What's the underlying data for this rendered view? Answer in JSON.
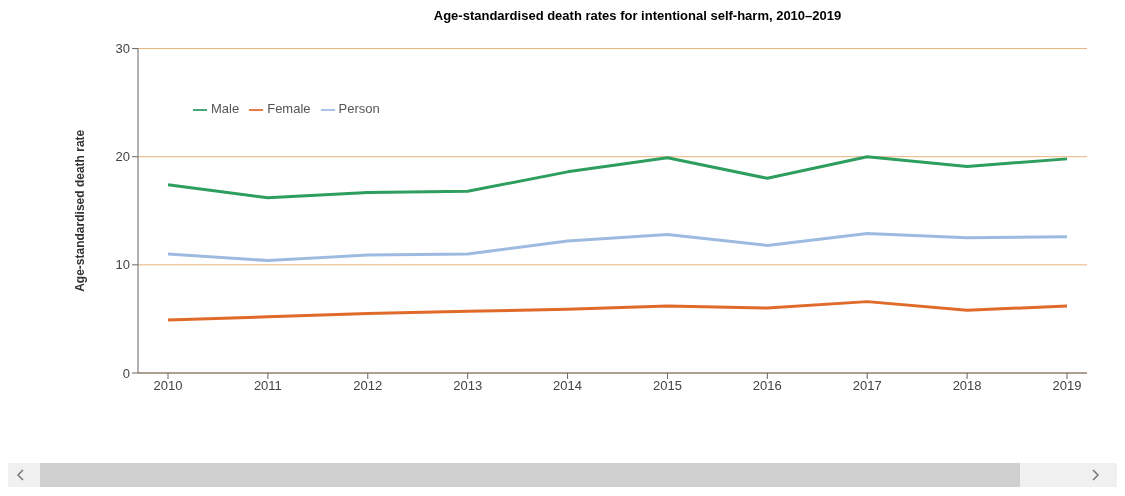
{
  "chart_data": {
    "type": "line",
    "title": "Age-standardised death rates for intentional self-harm, 2010–2019",
    "ylabel": "Age-standardised death rate",
    "categories": [
      "2010",
      "2011",
      "2012",
      "2013",
      "2014",
      "2015",
      "2016",
      "2017",
      "2018",
      "2019"
    ],
    "series": [
      {
        "name": "Male",
        "color": "#2e9e5e",
        "values": [
          17.4,
          16.2,
          16.7,
          16.8,
          18.6,
          19.9,
          18.0,
          20.0,
          19.1,
          19.8
        ]
      },
      {
        "name": "Female",
        "color": "#e06a2a",
        "values": [
          4.9,
          5.2,
          5.5,
          5.7,
          5.9,
          6.2,
          6.0,
          6.6,
          5.8,
          6.2
        ]
      },
      {
        "name": "Person",
        "color": "#9dbbe0",
        "values": [
          11.0,
          10.4,
          10.9,
          11.0,
          12.2,
          12.8,
          11.8,
          12.9,
          12.5,
          12.6
        ]
      }
    ],
    "ylim": [
      0,
      30
    ],
    "yticks": [
      0,
      10,
      20,
      30
    ],
    "grid": "y",
    "legend": "top left",
    "marker": "none",
    "line_style": "solid"
  }
}
